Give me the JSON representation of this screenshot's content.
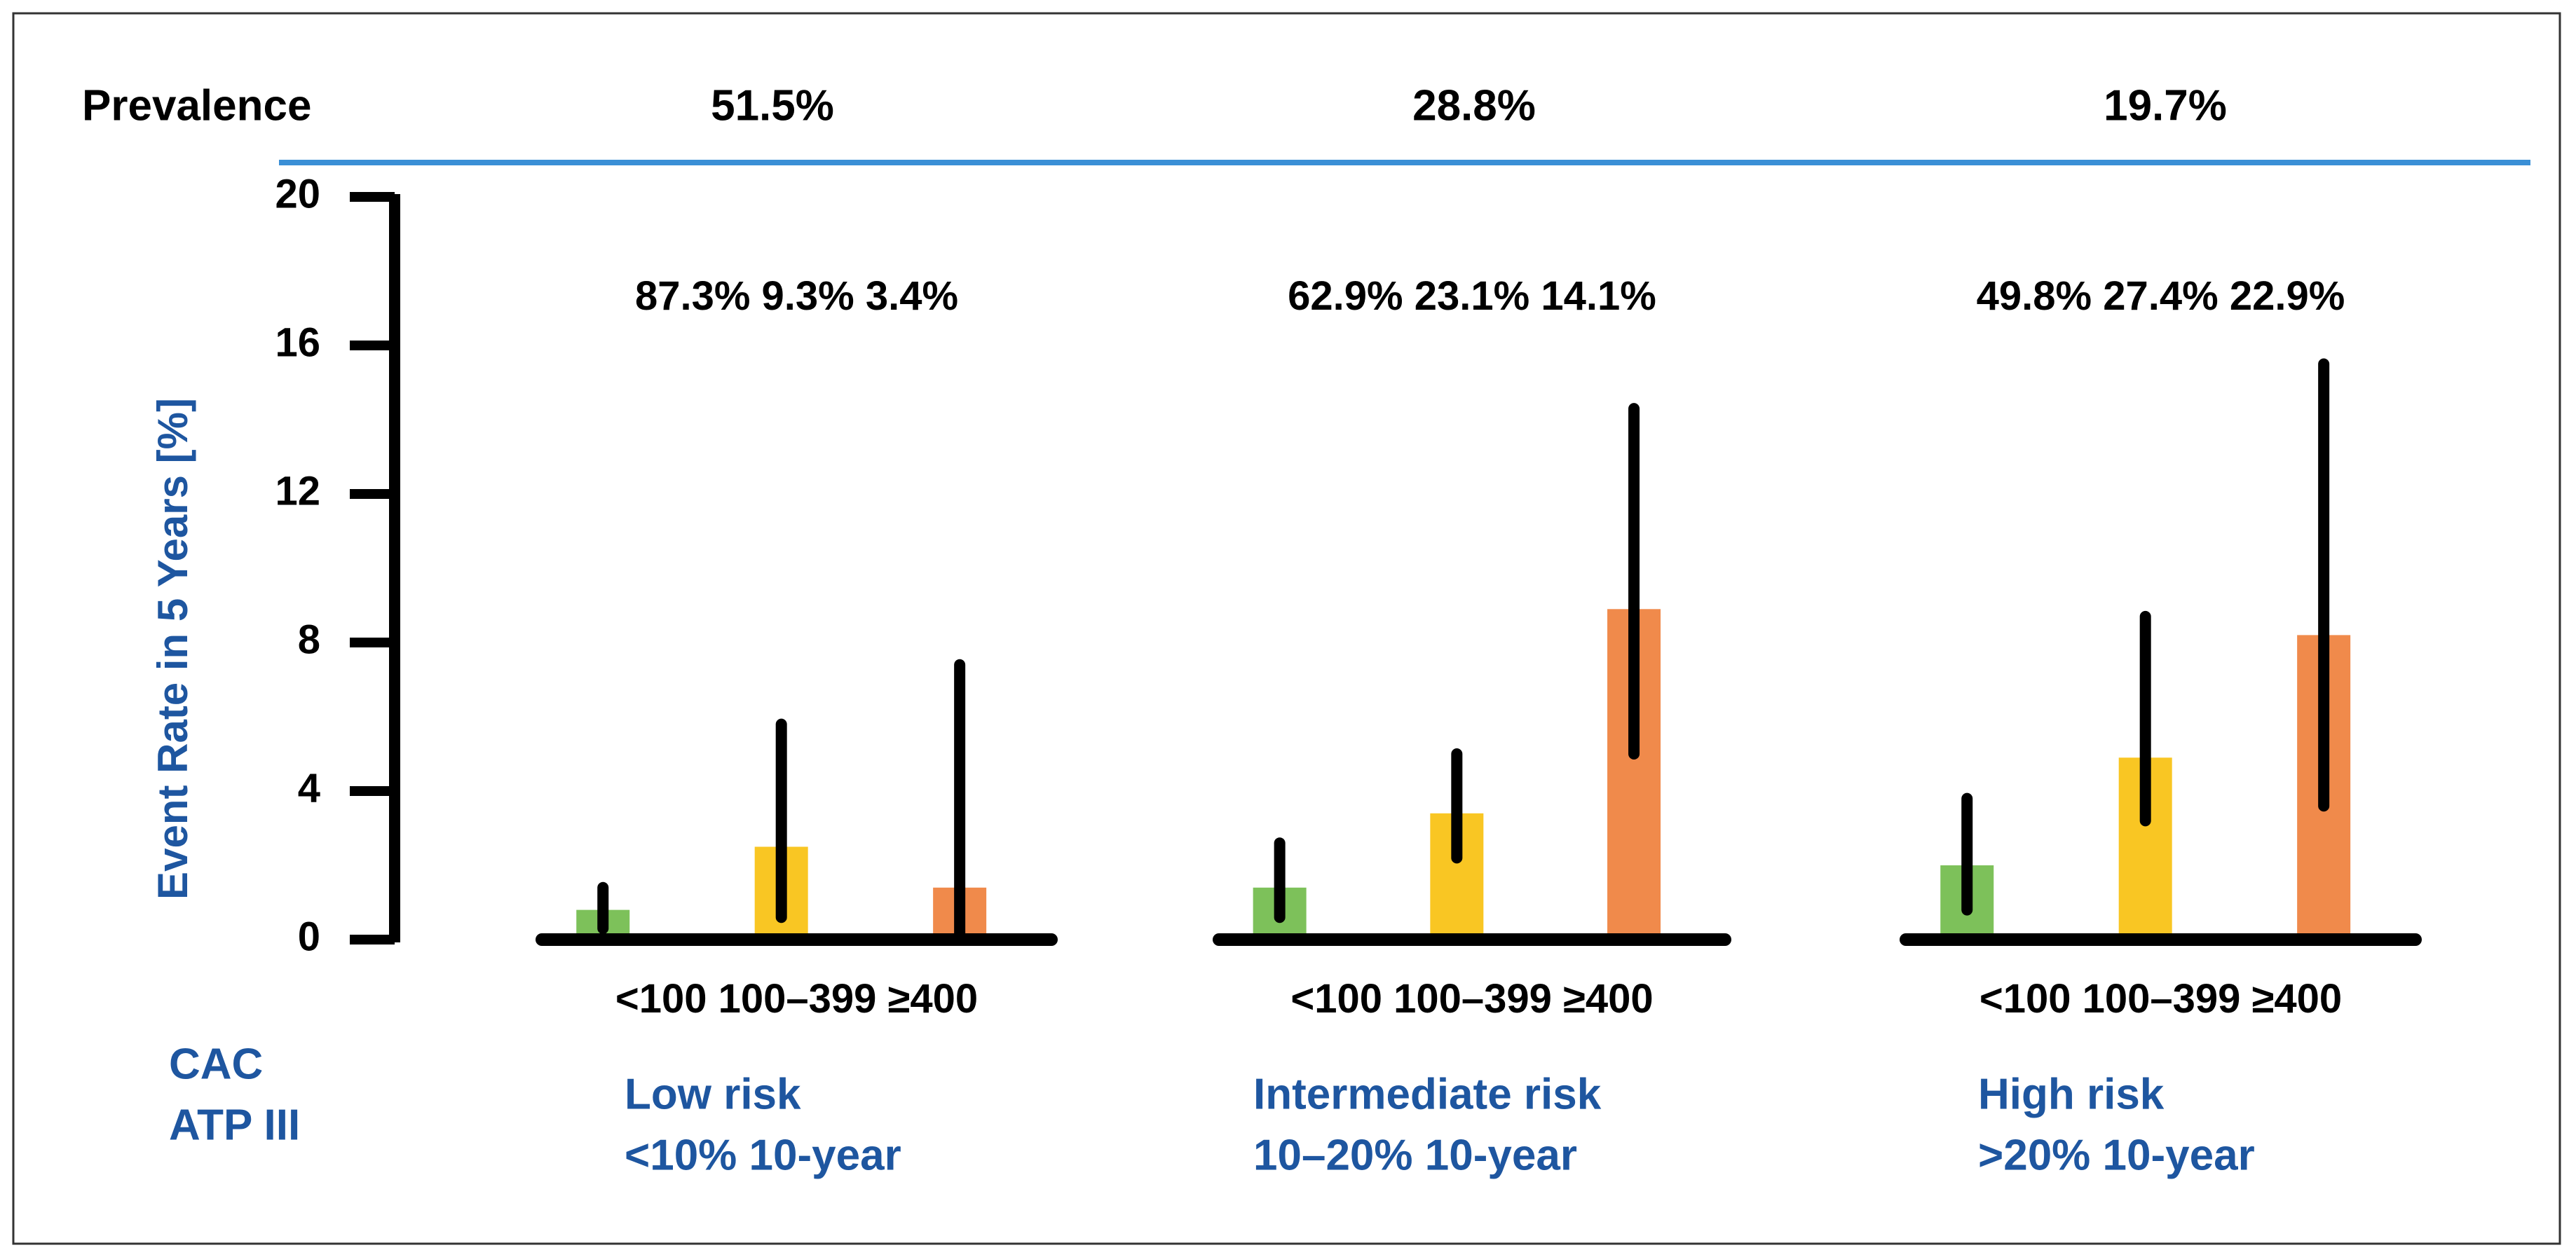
{
  "chart_data": {
    "type": "bar",
    "prevalence_label": "Prevalence",
    "prevalence": [
      {
        "value": 51.5,
        "label": "51.5%"
      },
      {
        "value": 28.8,
        "label": "28.8%"
      },
      {
        "value": 19.7,
        "label": "19.7%"
      }
    ],
    "y_label": "Event Rate in 5 Years [%]",
    "categories": [
      "Low risk",
      "Intermediate risk",
      "High risk"
    ],
    "category_subtitles": [
      "<10% 10-year",
      "10–20% 10-year",
      ">20% 10-year"
    ],
    "cac_label": "CAC",
    "atp_label": "ATP III",
    "ylim": [
      0,
      20
    ],
    "yticks": [
      0,
      4,
      8,
      12,
      16,
      20
    ],
    "series": [
      {
        "name": "<100",
        "color": "#7dc15a",
        "values": [
          0.8,
          1.4,
          2.0
        ],
        "lower": [
          0.3,
          0.6,
          0.8
        ],
        "upper": [
          1.4,
          2.6,
          3.8
        ],
        "shares": [
          87.3,
          62.9,
          49.8
        ],
        "share_labels": [
          "87.3%",
          "62.9%",
          "49.8%"
        ]
      },
      {
        "name": "100–399",
        "color": "#f9c623",
        "values": [
          2.5,
          3.4,
          4.9
        ],
        "lower": [
          0.6,
          2.2,
          3.2
        ],
        "upper": [
          5.8,
          5.0,
          8.7
        ],
        "shares": [
          9.3,
          23.1,
          27.4
        ],
        "share_labels": [
          "9.3%",
          "23.1%",
          "27.4%"
        ]
      },
      {
        "name": "≥400",
        "color": "#f08a4b",
        "values": [
          1.4,
          8.9,
          8.2
        ],
        "lower": [
          0.0,
          5.0,
          3.6
        ],
        "upper": [
          7.4,
          14.3,
          15.5
        ],
        "shares": [
          3.4,
          14.1,
          22.9
        ],
        "share_labels": [
          "3.4%",
          "14.1%",
          "22.9%"
        ]
      }
    ]
  }
}
